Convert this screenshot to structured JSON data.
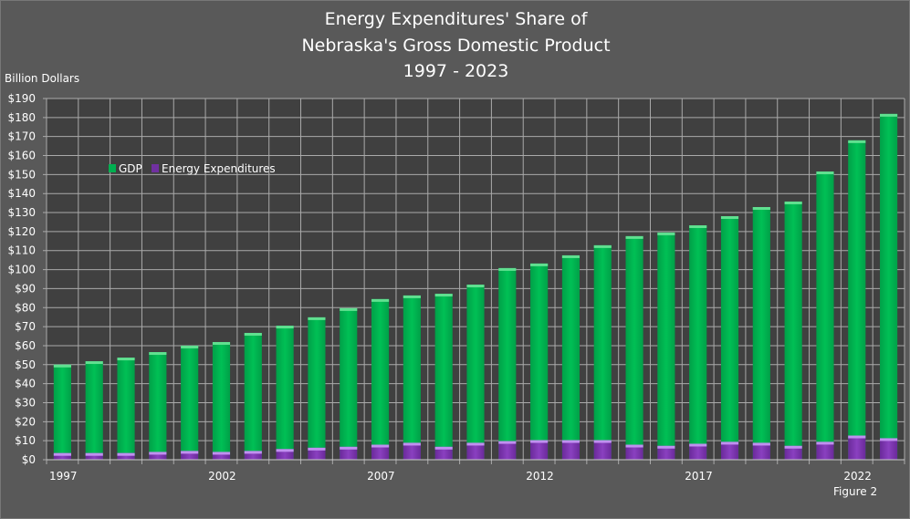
{
  "chart_data": {
    "type": "bar",
    "title_lines": [
      "Energy Expenditures' Share of",
      "Nebraska's Gross Domestic Product",
      "1997 - 2023"
    ],
    "ylabel": "Billion Dollars",
    "xlabel": "",
    "ylim": [
      0,
      190
    ],
    "ytick_step": 10,
    "ytick_format": "$",
    "grid": true,
    "legend_position": "upper-left inside",
    "note": "Figure 2",
    "categories": [
      1997,
      1998,
      1999,
      2000,
      2001,
      2002,
      2003,
      2004,
      2005,
      2006,
      2007,
      2008,
      2009,
      2010,
      2011,
      2012,
      2013,
      2014,
      2015,
      2016,
      2017,
      2018,
      2019,
      2020,
      2021,
      2022,
      2023
    ],
    "xtick_labels": [
      "1997",
      "2002",
      "2007",
      "2012",
      "2017",
      "2022"
    ],
    "series": [
      {
        "name": "GDP",
        "color": "#00b050",
        "values": [
          50,
          51.8,
          53.7,
          56.6,
          60,
          61.9,
          66.7,
          70.5,
          74.9,
          79.7,
          84.5,
          86.4,
          87.3,
          92.1,
          100.8,
          103.2,
          107.5,
          112.8,
          117.6,
          119.5,
          123.3,
          128.1,
          132.9,
          135.8,
          151.6,
          168,
          181.9
        ]
      },
      {
        "name": "Energy Expenditures",
        "color": "#7030a0",
        "values": [
          3.5,
          3.5,
          3.5,
          4.1,
          4.6,
          4.1,
          4.6,
          5.6,
          6.3,
          6.8,
          7.9,
          8.9,
          6.8,
          8.9,
          9.8,
          10.3,
          10.3,
          10.3,
          7.9,
          7.3,
          8.4,
          9.4,
          8.9,
          7.3,
          9.4,
          12.7,
          11.3
        ]
      }
    ]
  }
}
